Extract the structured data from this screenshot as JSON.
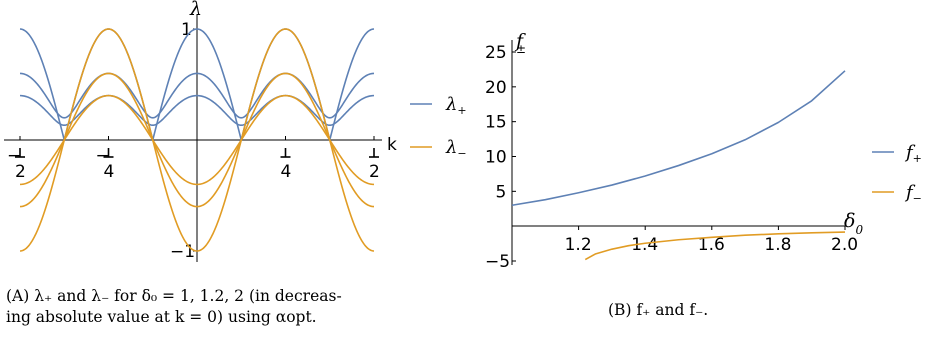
{
  "colors": {
    "plus": "#5e81b5",
    "minus": "#e19c24",
    "axis": "#000000"
  },
  "chart_data": [
    {
      "type": "line",
      "id": "panel-a",
      "xlabel": "k",
      "ylabel": "λ",
      "xlim": [
        -0.5,
        0.5
      ],
      "ylim": [
        -1,
        1
      ],
      "x_ticks": [
        {
          "value": -0.5,
          "num": "−",
          "den": "2"
        },
        {
          "value": -0.25,
          "num": "−",
          "den": "4"
        },
        {
          "value": 0.25,
          "num": "",
          "den": "4"
        },
        {
          "value": 0.5,
          "num": "",
          "den": "2"
        }
      ],
      "y_ticks": [
        {
          "value": 1,
          "label": "1"
        },
        {
          "value": -1,
          "label": "−1"
        }
      ],
      "delta0_values": [
        1,
        1.2,
        2
      ],
      "series": [
        {
          "name": "λ₊",
          "color_key": "plus",
          "peaks": [
            1.0,
            0.6,
            0.4
          ],
          "plateau": 0.333
        },
        {
          "name": "λ₋",
          "color_key": "minus",
          "peaks": [
            -1.0,
            -0.6,
            -0.4
          ],
          "plateau": 0.5
        }
      ],
      "legend": [
        {
          "label": "λ",
          "sub": "+",
          "color_key": "plus"
        },
        {
          "label": "λ",
          "sub": "−",
          "color_key": "minus"
        }
      ],
      "legend_position": "right"
    },
    {
      "type": "line",
      "id": "panel-b",
      "xlabel": "δ",
      "xlabel_sub": "0",
      "ylabel": "f",
      "ylabel_sub": "±",
      "xlim": [
        1.0,
        2.0
      ],
      "ylim": [
        -5,
        25
      ],
      "x_ticks": [
        {
          "value": 1.2,
          "label": "1.2"
        },
        {
          "value": 1.4,
          "label": "1.4"
        },
        {
          "value": 1.6,
          "label": "1.6"
        },
        {
          "value": 1.8,
          "label": "1.8"
        },
        {
          "value": 2.0,
          "label": "2.0"
        }
      ],
      "y_ticks": [
        {
          "value": -5,
          "label": "−5"
        },
        {
          "value": 5,
          "label": "5"
        },
        {
          "value": 10,
          "label": "10"
        },
        {
          "value": 15,
          "label": "15"
        },
        {
          "value": 20,
          "label": "20"
        },
        {
          "value": 25,
          "label": "25"
        }
      ],
      "series": [
        {
          "name": "f₊",
          "color_key": "plus",
          "x": [
            1.0,
            1.1,
            1.2,
            1.3,
            1.4,
            1.5,
            1.6,
            1.7,
            1.8,
            1.9,
            2.0
          ],
          "y": [
            3.0,
            3.8,
            4.8,
            5.9,
            7.2,
            8.7,
            10.4,
            12.4,
            14.9,
            18.0,
            22.3
          ]
        },
        {
          "name": "f₋",
          "color_key": "minus",
          "x": [
            1.22,
            1.25,
            1.3,
            1.35,
            1.4,
            1.5,
            1.6,
            1.7,
            1.8,
            1.9,
            2.0
          ],
          "y": [
            -4.8,
            -4.0,
            -3.3,
            -2.8,
            -2.45,
            -1.95,
            -1.6,
            -1.3,
            -1.1,
            -0.95,
            -0.85
          ]
        }
      ],
      "legend": [
        {
          "label": "f",
          "sub": "+",
          "color_key": "plus"
        },
        {
          "label": "f",
          "sub": "−",
          "color_key": "minus"
        }
      ],
      "legend_position": "right"
    }
  ],
  "captions": {
    "a_label": "(A)",
    "a_line1": "λ₊ and λ₋ for δ₀ = 1, 1.2, 2 (in decreas-",
    "a_line2": "ing absolute value at k = 0) using αopt.",
    "b_label": "(B)",
    "b_text": "f₊ and f₋."
  }
}
